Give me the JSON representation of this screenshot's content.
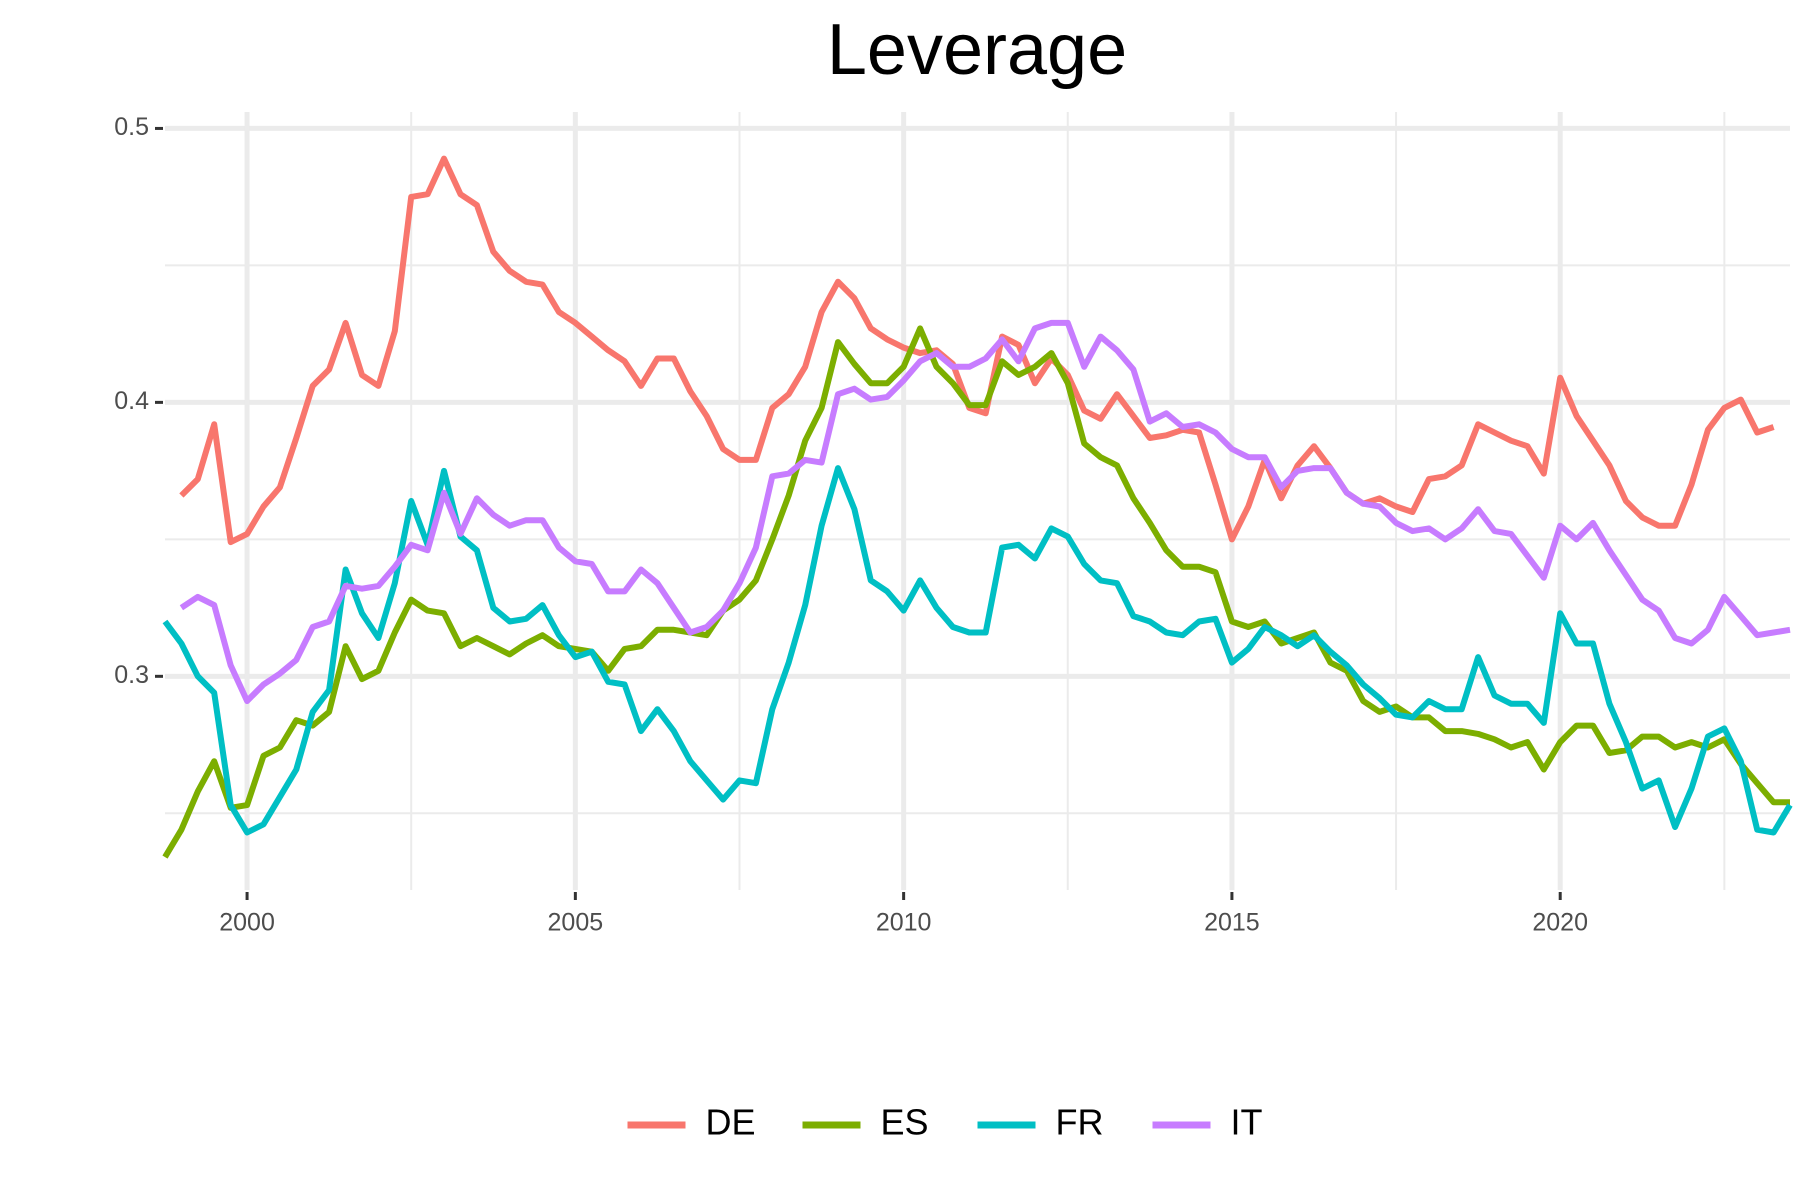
{
  "chart_data": {
    "type": "line",
    "title": "Leverage",
    "x": [
      1998.75,
      1999,
      1999.25,
      1999.5,
      1999.75,
      2000,
      2000.25,
      2000.5,
      2000.75,
      2001,
      2001.25,
      2001.5,
      2001.75,
      2002,
      2002.25,
      2002.5,
      2002.75,
      2003,
      2003.25,
      2003.5,
      2003.75,
      2004,
      2004.25,
      2004.5,
      2004.75,
      2005,
      2005.25,
      2005.5,
      2005.75,
      2006,
      2006.25,
      2006.5,
      2006.75,
      2007,
      2007.25,
      2007.5,
      2007.75,
      2008,
      2008.25,
      2008.5,
      2008.75,
      2009,
      2009.25,
      2009.5,
      2009.75,
      2010,
      2010.25,
      2010.5,
      2010.75,
      2011,
      2011.25,
      2011.5,
      2011.75,
      2012,
      2012.25,
      2012.5,
      2012.75,
      2013,
      2013.25,
      2013.5,
      2013.75,
      2014,
      2014.25,
      2014.5,
      2014.75,
      2015,
      2015.25,
      2015.5,
      2015.75,
      2016,
      2016.25,
      2016.5,
      2016.75,
      2017,
      2017.25,
      2017.5,
      2017.75,
      2018,
      2018.25,
      2018.5,
      2018.75,
      2019,
      2019.25,
      2019.5,
      2019.75,
      2020,
      2020.25,
      2020.5,
      2020.75,
      2021,
      2021.25,
      2021.5,
      2021.75,
      2022,
      2022.25,
      2022.5,
      2022.75,
      2023,
      2023.25,
      2023.5
    ],
    "series": [
      {
        "name": "DE",
        "color": "#F8766D",
        "values": [
          null,
          0.366,
          0.372,
          0.392,
          0.349,
          0.352,
          0.362,
          0.369,
          0.387,
          0.406,
          0.412,
          0.429,
          0.41,
          0.406,
          0.426,
          0.475,
          0.476,
          0.489,
          0.476,
          0.472,
          0.455,
          0.448,
          0.444,
          0.443,
          0.433,
          0.429,
          0.424,
          0.419,
          0.415,
          0.406,
          0.416,
          0.416,
          0.404,
          0.395,
          0.383,
          0.379,
          0.379,
          0.398,
          0.403,
          0.413,
          0.433,
          0.444,
          0.438,
          0.427,
          0.423,
          0.42,
          0.418,
          0.419,
          0.414,
          0.398,
          0.396,
          0.424,
          0.421,
          0.407,
          0.416,
          0.41,
          0.397,
          0.394,
          0.403,
          0.395,
          0.387,
          0.388,
          0.39,
          0.389,
          0.37,
          0.35,
          0.362,
          0.379,
          0.365,
          0.377,
          0.384,
          0.376,
          0.367,
          0.363,
          0.365,
          0.362,
          0.36,
          0.372,
          0.373,
          0.377,
          0.392,
          0.389,
          0.386,
          0.384,
          0.374,
          0.409,
          0.395,
          0.386,
          0.377,
          0.364,
          0.358,
          0.355,
          0.355,
          0.37,
          0.39,
          0.398,
          0.401,
          0.389,
          0.391,
          null
        ]
      },
      {
        "name": "ES",
        "color": "#7CAE00",
        "values": [
          0.234,
          0.244,
          0.258,
          0.269,
          0.252,
          0.253,
          0.271,
          0.274,
          0.284,
          0.282,
          0.287,
          0.311,
          0.299,
          0.302,
          0.316,
          0.328,
          0.324,
          0.323,
          0.311,
          0.314,
          0.311,
          0.308,
          0.312,
          0.315,
          0.311,
          0.31,
          0.309,
          0.302,
          0.31,
          0.311,
          0.317,
          0.317,
          0.316,
          0.315,
          0.324,
          0.328,
          0.335,
          0.35,
          0.366,
          0.386,
          0.398,
          0.422,
          0.414,
          0.407,
          0.407,
          0.413,
          0.427,
          0.413,
          0.407,
          0.399,
          0.399,
          0.415,
          0.41,
          0.413,
          0.418,
          0.407,
          0.385,
          0.38,
          0.377,
          0.365,
          0.356,
          0.346,
          0.34,
          0.34,
          0.338,
          0.32,
          0.318,
          0.32,
          0.312,
          0.314,
          0.316,
          0.305,
          0.302,
          0.291,
          0.287,
          0.289,
          0.285,
          0.285,
          0.28,
          0.28,
          0.279,
          0.277,
          0.274,
          0.276,
          0.266,
          0.276,
          0.282,
          0.282,
          0.272,
          0.273,
          0.278,
          0.278,
          0.274,
          0.276,
          0.274,
          0.277,
          0.268,
          0.261,
          0.254,
          0.254
        ]
      },
      {
        "name": "FR",
        "color": "#00BFC4",
        "values": [
          0.32,
          0.312,
          0.3,
          0.294,
          0.253,
          0.243,
          0.246,
          0.256,
          0.266,
          0.287,
          0.295,
          0.339,
          0.323,
          0.314,
          0.334,
          0.364,
          0.348,
          0.375,
          0.351,
          0.346,
          0.325,
          0.32,
          0.321,
          0.326,
          0.315,
          0.307,
          0.309,
          0.298,
          0.297,
          0.28,
          0.288,
          0.28,
          0.269,
          0.262,
          0.255,
          0.262,
          0.261,
          0.288,
          0.305,
          0.326,
          0.355,
          0.376,
          0.361,
          0.335,
          0.331,
          0.324,
          0.335,
          0.325,
          0.318,
          0.316,
          0.316,
          0.347,
          0.348,
          0.343,
          0.354,
          0.351,
          0.341,
          0.335,
          0.334,
          0.322,
          0.32,
          0.316,
          0.315,
          0.32,
          0.321,
          0.305,
          0.31,
          0.318,
          0.315,
          0.311,
          0.315,
          0.309,
          0.304,
          0.297,
          0.292,
          0.286,
          0.285,
          0.291,
          0.288,
          0.288,
          0.307,
          0.293,
          0.29,
          0.29,
          0.283,
          0.323,
          0.312,
          0.312,
          0.29,
          0.276,
          0.259,
          0.262,
          0.245,
          0.259,
          0.278,
          0.281,
          0.269,
          0.244,
          0.243,
          0.253
        ]
      },
      {
        "name": "IT",
        "color": "#C77CFF",
        "values": [
          null,
          0.325,
          0.329,
          0.326,
          0.304,
          0.291,
          0.297,
          0.301,
          0.306,
          0.318,
          0.32,
          0.333,
          0.332,
          0.333,
          0.34,
          0.348,
          0.346,
          0.367,
          0.352,
          0.365,
          0.359,
          0.355,
          0.357,
          0.357,
          0.347,
          0.342,
          0.341,
          0.331,
          0.331,
          0.339,
          0.334,
          0.325,
          0.316,
          0.318,
          0.324,
          0.334,
          0.347,
          0.373,
          0.374,
          0.379,
          0.378,
          0.403,
          0.405,
          0.401,
          0.402,
          0.408,
          0.415,
          0.418,
          0.413,
          0.413,
          0.416,
          0.423,
          0.415,
          0.427,
          0.429,
          0.429,
          0.413,
          0.424,
          0.419,
          0.412,
          0.393,
          0.396,
          0.391,
          0.392,
          0.389,
          0.383,
          0.38,
          0.38,
          0.369,
          0.375,
          0.376,
          0.376,
          0.367,
          0.363,
          0.362,
          0.356,
          0.353,
          0.354,
          0.35,
          0.354,
          0.361,
          0.353,
          0.352,
          0.344,
          0.336,
          0.355,
          0.35,
          0.356,
          0.346,
          0.337,
          0.328,
          0.324,
          0.314,
          0.312,
          0.317,
          0.329,
          0.322,
          0.315,
          0.316,
          0.317
        ]
      }
    ],
    "xlim": [
      1998.75,
      2023.5
    ],
    "ylim": [
      0.222,
      0.506
    ],
    "xticks": [
      2000,
      2005,
      2010,
      2015,
      2020
    ],
    "yticks": [
      0.3,
      0.4,
      0.5
    ],
    "grid": true,
    "legend": "bottom"
  }
}
